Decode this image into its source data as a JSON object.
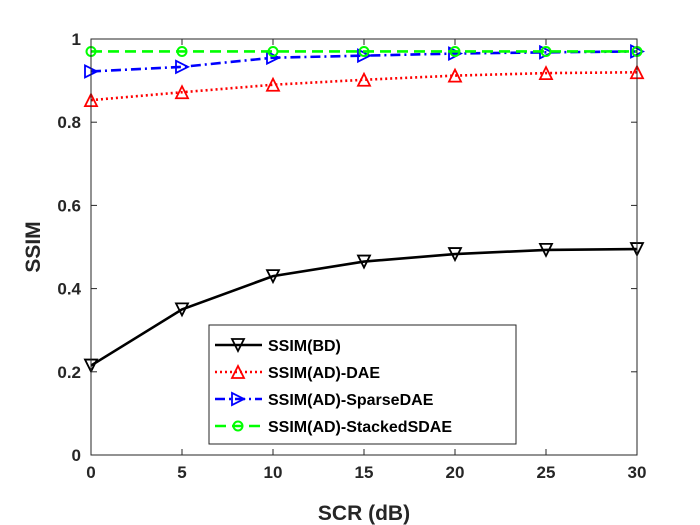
{
  "chart_data": {
    "type": "line",
    "title": "",
    "xlabel": "SCR (dB)",
    "ylabel": "SSIM",
    "xlim": [
      0,
      30
    ],
    "ylim": [
      0,
      1
    ],
    "x_ticks": [
      0,
      5,
      10,
      15,
      20,
      25,
      30
    ],
    "y_ticks": [
      0,
      0.2,
      0.4,
      0.6,
      0.8,
      1
    ],
    "x_tick_labels": [
      "0",
      "5",
      "10",
      "15",
      "20",
      "25",
      "30"
    ],
    "y_tick_labels": [
      "0",
      "0.2",
      "0.4",
      "0.6",
      "0.8",
      "1"
    ],
    "grid": false,
    "legend_position": "lower-center",
    "x": [
      0,
      5,
      10,
      15,
      20,
      25,
      30
    ],
    "series": [
      {
        "name": "SSIM(BD)",
        "color": "#000000",
        "dash": "solid",
        "marker": "triangle-down",
        "values": [
          0.215,
          0.35,
          0.43,
          0.465,
          0.483,
          0.493,
          0.495
        ]
      },
      {
        "name": "SSIM(AD)-DAE",
        "color": "#ff0000",
        "dash": "dotted",
        "marker": "triangle-up",
        "values": [
          0.853,
          0.872,
          0.89,
          0.902,
          0.912,
          0.918,
          0.92
        ]
      },
      {
        "name": "SSIM(AD)-SparseDAE",
        "color": "#0000ff",
        "dash": "dashdot",
        "marker": "triangle-right",
        "values": [
          0.922,
          0.933,
          0.955,
          0.96,
          0.965,
          0.968,
          0.97
        ]
      },
      {
        "name": "SSIM(AD)-StackedSDAE",
        "color": "#00ff00",
        "dash": "dashed",
        "marker": "circle",
        "values": [
          0.97,
          0.97,
          0.97,
          0.97,
          0.97,
          0.97,
          0.97
        ]
      }
    ]
  }
}
